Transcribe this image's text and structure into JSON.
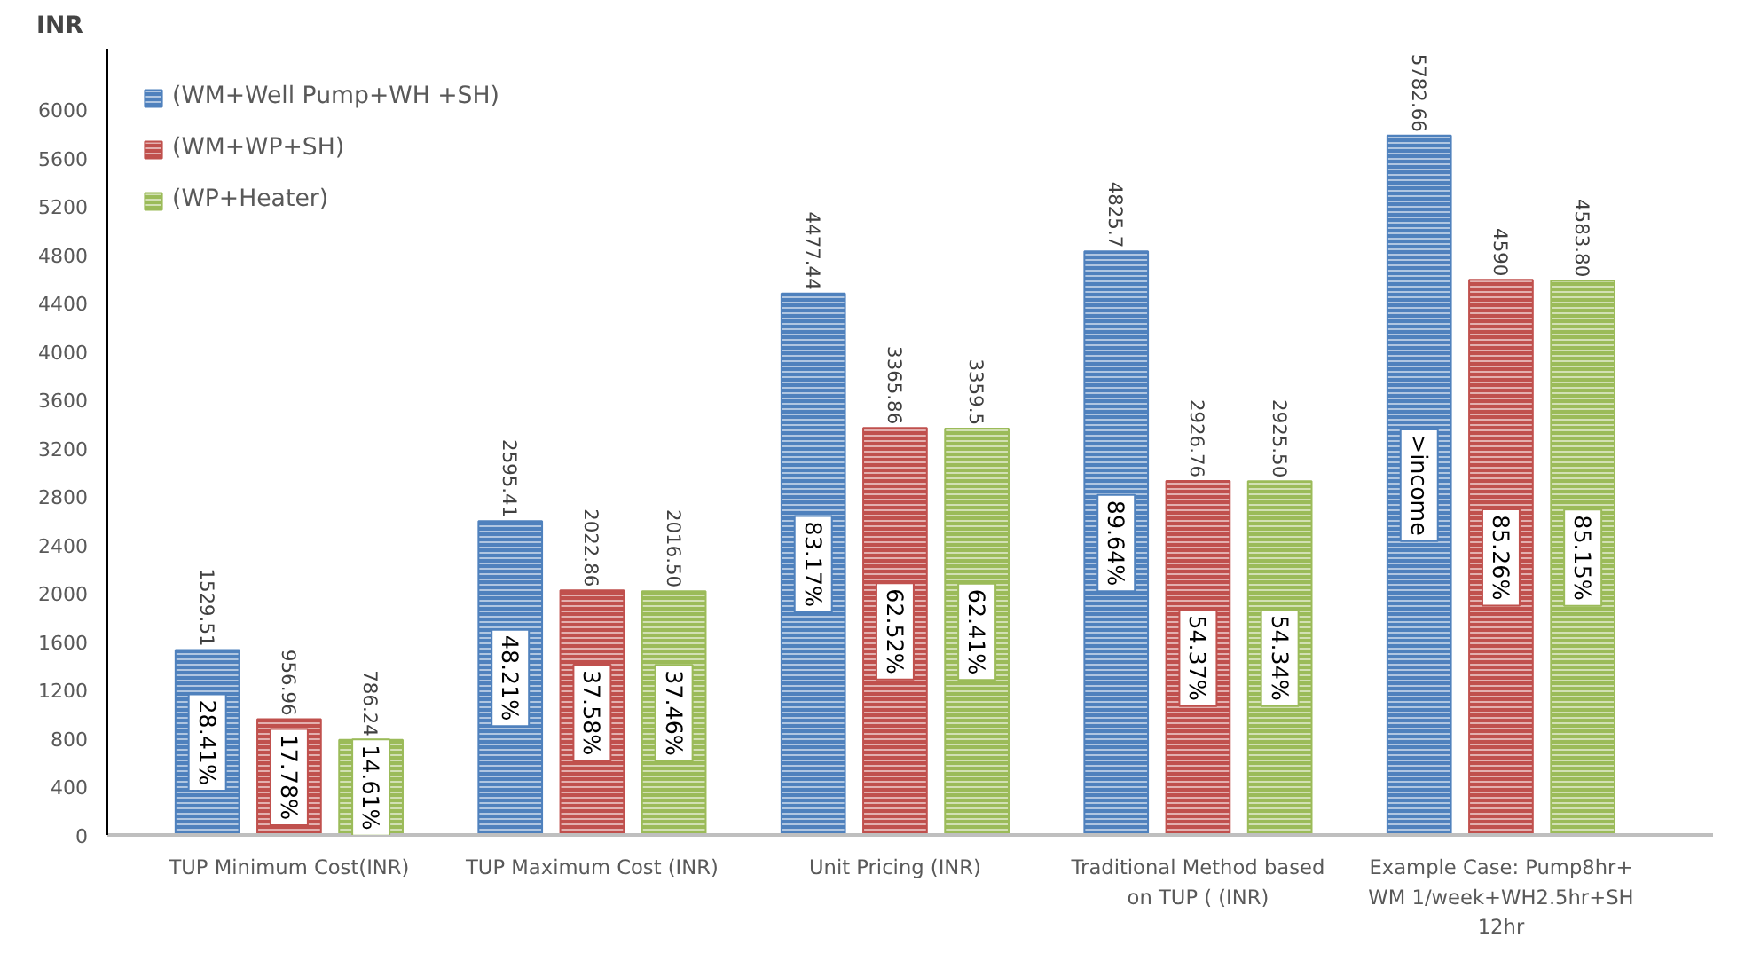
{
  "chart_data": {
    "type": "bar",
    "ylabel": "INR",
    "categories": [
      "TUP Minimum Cost(INR)",
      "TUP Maximum Cost (INR)",
      "Unit Pricing (INR)",
      "Traditional Method based on TUP ( (INR)",
      "Example Case: Pump8hr+ WM 1/week+WH2.5hr+SH 12hr"
    ],
    "series": [
      {
        "name": "(WM+Well Pump+WH +SH)",
        "color": "#4f81bd",
        "values": [
          1529.51,
          2595.41,
          4477.44,
          4825.7,
          5782.66
        ],
        "value_labels": [
          "1529.51",
          "2595.41",
          "4477.44",
          "4825.7",
          "5782.66"
        ]
      },
      {
        "name": "(WM+WP+SH)",
        "color": "#c0504d",
        "values": [
          956.96,
          2022.86,
          3365.86,
          2926.76,
          4590
        ],
        "value_labels": [
          "956.96",
          "2022.86",
          "3365.86",
          "2926.76",
          "4590"
        ]
      },
      {
        "name": "(WP+Heater)",
        "color": "#9bbb59",
        "values": [
          786.24,
          2016.5,
          3359.5,
          2925.5,
          4583.8
        ],
        "value_labels": [
          "786.24",
          "2016.50",
          "3359.5",
          "2925.50",
          "4583.80"
        ]
      }
    ],
    "ylim": [
      0,
      6500
    ],
    "yticks": [
      0,
      400,
      800,
      1200,
      1600,
      2000,
      2400,
      2800,
      3200,
      3600,
      4000,
      4400,
      4800,
      5200,
      5600,
      6000
    ],
    "grid": false,
    "legend": "top left",
    "annotations": [
      "28.41%",
      "17.78%",
      "14.61%",
      "48.21%",
      "37.58%",
      "37.46%",
      "83.17%",
      "62.52%",
      "62.41%",
      "89.64%",
      "54.37%",
      "54.34%",
      ">income",
      "85.26%",
      "85.15%"
    ]
  }
}
